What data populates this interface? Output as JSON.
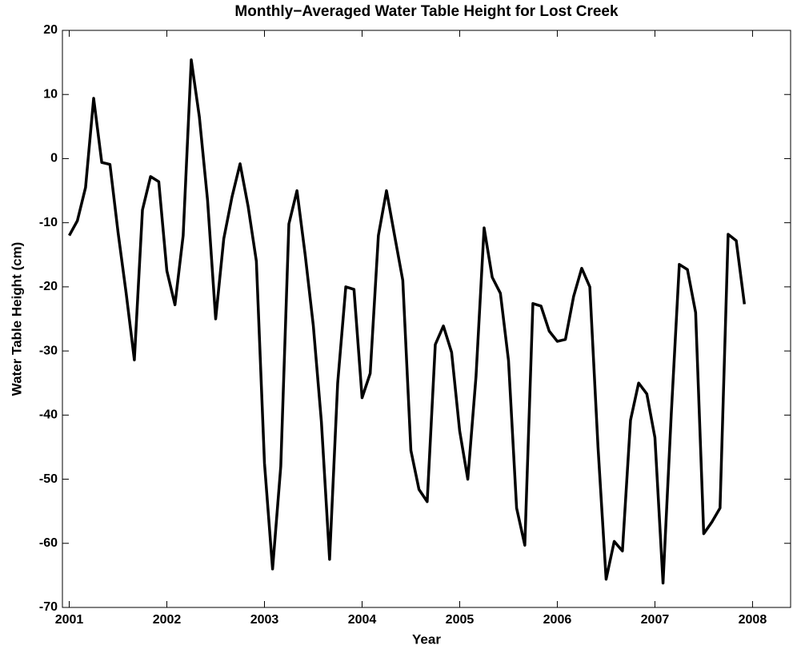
{
  "chart_data": {
    "type": "line",
    "title": "Monthly−Averaged Water Table Height for Lost Creek",
    "x_label": "Year",
    "y_label": "Water Table Height (cm)",
    "color": "#000000",
    "x": [
      2001,
      2001.083,
      2001.167,
      2001.25,
      2001.333,
      2001.417,
      2001.5,
      2001.583,
      2001.667,
      2001.75,
      2001.833,
      2001.917,
      2002,
      2002.083,
      2002.167,
      2002.25,
      2002.333,
      2002.417,
      2002.5,
      2002.583,
      2002.667,
      2002.75,
      2002.833,
      2002.917,
      2003,
      2003.083,
      2003.167,
      2003.25,
      2003.333,
      2003.417,
      2003.5,
      2003.583,
      2003.667,
      2003.75,
      2003.833,
      2003.917,
      2004,
      2004.083,
      2004.167,
      2004.25,
      2004.333,
      2004.417,
      2004.5,
      2004.583,
      2004.667,
      2004.75,
      2004.833,
      2004.917,
      2005,
      2005.083,
      2005.167,
      2005.25,
      2005.333,
      2005.417,
      2005.5,
      2005.583,
      2005.667,
      2005.75,
      2005.833,
      2005.917,
      2006,
      2006.083,
      2006.167,
      2006.25,
      2006.333,
      2006.417,
      2006.5,
      2006.583,
      2006.667,
      2006.75,
      2006.833,
      2006.917,
      2007,
      2007.083,
      2007.167,
      2007.25,
      2007.333,
      2007.417,
      2007.5,
      2007.583,
      2007.667,
      2007.75,
      2007.833,
      2007.917
    ],
    "values": [
      -12,
      -9.7,
      -4.5,
      9.4,
      -0.6,
      -0.9,
      -11.5,
      -21,
      -31.4,
      -8,
      -2.8,
      -3.6,
      -17.5,
      -22.8,
      -12,
      15.4,
      6.5,
      -6.5,
      -25,
      -12.5,
      -6,
      -0.8,
      -7.5,
      -16,
      -47.5,
      -64,
      -48,
      -10.2,
      -5,
      -15,
      -26,
      -41,
      -62.5,
      -35,
      -20,
      -20.4,
      -37.3,
      -33.5,
      -12,
      -5,
      -12,
      -19,
      -45.5,
      -51.6,
      -53.5,
      -29,
      -26.1,
      -30.2,
      -42.5,
      -50,
      -34,
      -10.8,
      -18.5,
      -21,
      -31.5,
      -54.5,
      -60.3,
      -22.6,
      -23,
      -26.9,
      -28.5,
      -28.2,
      -21.5,
      -17.1,
      -20,
      -45,
      -65.6,
      -59.7,
      -61.2,
      -40.8,
      -35,
      -36.7,
      -43.5,
      -66.2,
      -40,
      -16.5,
      -17.3,
      -24,
      -58.5,
      -56.7,
      -54.5,
      -11.8,
      -12.8,
      -22.7
    ],
    "xlim": [
      2000.93,
      2008.39
    ],
    "ylim": [
      -70,
      20
    ],
    "xticks": [
      2001,
      2002,
      2003,
      2004,
      2005,
      2006,
      2007,
      2008
    ],
    "yticks": [
      -70,
      -60,
      -50,
      -40,
      -30,
      -20,
      -10,
      0,
      10,
      20
    ]
  }
}
